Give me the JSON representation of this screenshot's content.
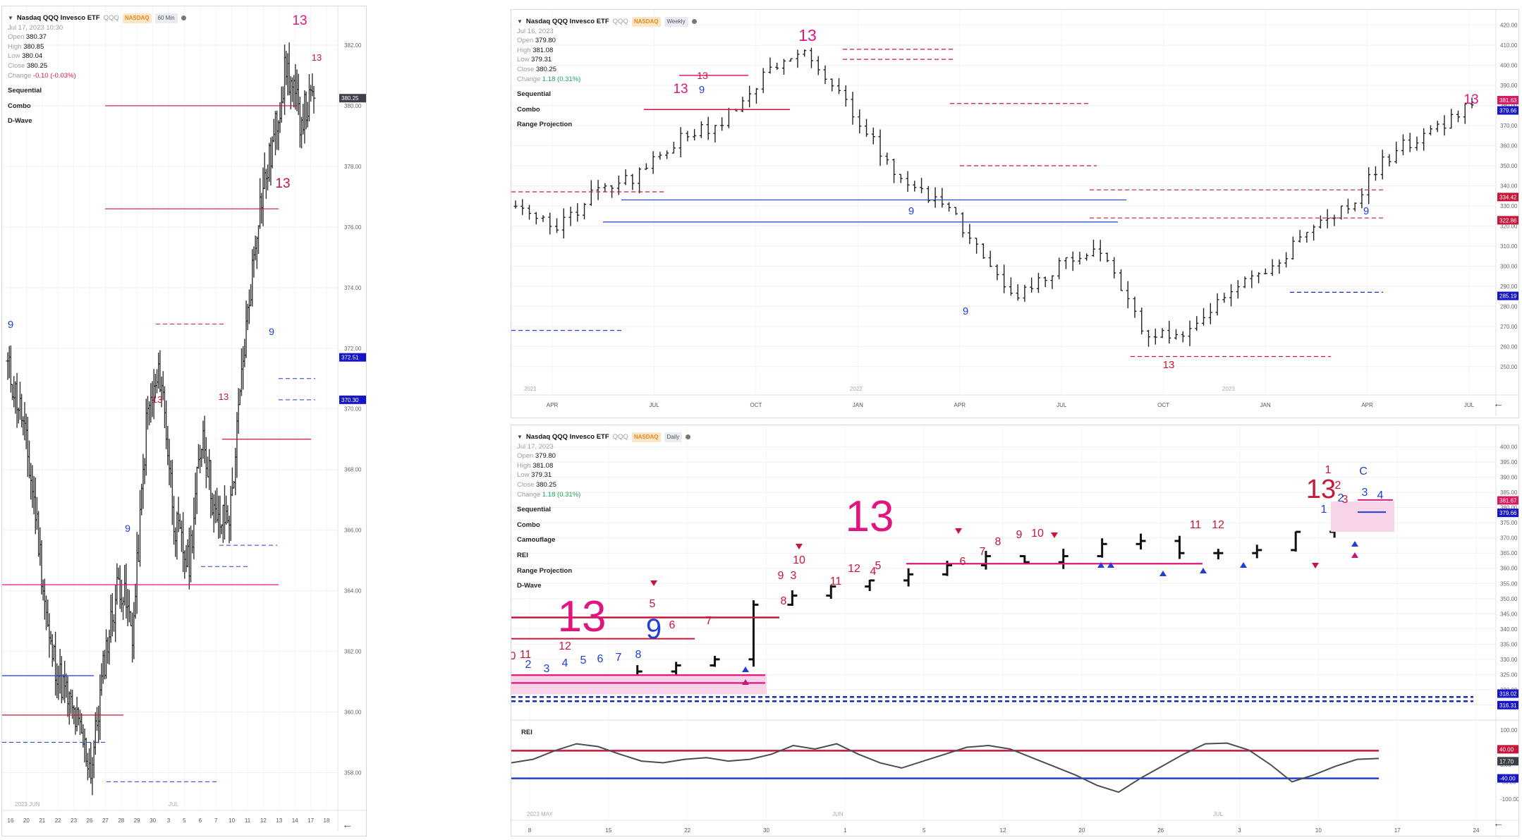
{
  "symbol_name": "Nasdaq QQQ Invesco ETF",
  "symbol": "QQQ",
  "exchange": "NASDAQ",
  "colors": {
    "bull_red": "#c8163a",
    "pink": "#e0157f",
    "blue": "#1f3fd8",
    "dark_blue": "#1a2bb8",
    "price_black": "#111111"
  },
  "panels": {
    "intraday": {
      "timeframe": "60 Min",
      "date": "Jul 17, 2023  10:30",
      "open_label": "Open",
      "open": "380.37",
      "high_label": "High",
      "high": "380.85",
      "low_label": "Low",
      "low": "380.04",
      "close_label": "Close",
      "close": "380.25",
      "change_label": "Change",
      "change": "-0.10 (-0.03%)",
      "indicators": [
        "Sequential",
        "Combo",
        "D-Wave"
      ],
      "price_ticks": [
        "382.00",
        "380.00",
        "378.00",
        "376.00",
        "374.00",
        "372.00",
        "370.00",
        "368.00",
        "366.00",
        "364.00",
        "362.00",
        "360.00",
        "358.00"
      ],
      "price_labels": [
        {
          "text": "380.25",
          "color": "#3d4048"
        },
        {
          "text": "372.51",
          "color": "#1515c8"
        },
        {
          "text": "370.30",
          "color": "#1515c8"
        }
      ],
      "year_label": "2023 JUN",
      "month_label": "JUL",
      "x_ticks": [
        "16",
        "20",
        "21",
        "22",
        "23",
        "26",
        "27",
        "28",
        "29",
        "30",
        "3",
        "5",
        "6",
        "7",
        "10",
        "11",
        "12",
        "13",
        "14",
        "17",
        "18"
      ],
      "counts": [
        "13",
        "13",
        "13",
        "13",
        "13",
        "9",
        "9",
        "9"
      ]
    },
    "weekly": {
      "timeframe": "Weekly",
      "date": "Jul 16, 2023",
      "open_label": "Open",
      "open": "379.80",
      "high_label": "High",
      "high": "381.08",
      "low_label": "Low",
      "low": "379.31",
      "close_label": "Close",
      "close": "380.25",
      "change_label": "Change",
      "change": "1.18 (0.31%)",
      "indicators": [
        "Sequential",
        "Combo",
        "Range Projection"
      ],
      "price_ticks": [
        "420.00",
        "410.00",
        "400.00",
        "390.00",
        "380.00",
        "370.00",
        "360.00",
        "350.00",
        "340.00",
        "330.00",
        "320.00",
        "310.00",
        "300.00",
        "290.00",
        "280.00",
        "270.00",
        "260.00",
        "250.00"
      ],
      "price_labels": [
        {
          "text": "381.63",
          "color": "#d81b60"
        },
        {
          "text": "379.66",
          "color": "#1515c8"
        },
        {
          "text": "334.42",
          "color": "#c8163a"
        },
        {
          "text": "322.86",
          "color": "#c8163a"
        },
        {
          "text": "285.19",
          "color": "#1515c8"
        }
      ],
      "year_labels": [
        "2021",
        "2022",
        "2023"
      ],
      "x_ticks": [
        "APR",
        "JUL",
        "OCT",
        "JAN",
        "APR",
        "JUL",
        "OCT",
        "JAN",
        "APR",
        "JUL"
      ],
      "counts": [
        "13",
        "13",
        "13",
        "13",
        "13",
        "9",
        "9",
        "9",
        "9"
      ]
    },
    "daily": {
      "timeframe": "Daily",
      "date": "Jul 17, 2023",
      "open_label": "Open",
      "open": "379.80",
      "high_label": "High",
      "high": "381.08",
      "low_label": "Low",
      "low": "379.31",
      "close_label": "Close",
      "close": "380.25",
      "change_label": "Change",
      "change": "1.18 (0.31%)",
      "indicators": [
        "Sequential",
        "Combo",
        "Camouflage",
        "REI",
        "Range Projection",
        "D-Wave"
      ],
      "price_ticks": [
        "400.00",
        "395.00",
        "390.00",
        "385.00",
        "380.00",
        "375.00",
        "370.00",
        "365.00",
        "360.00",
        "355.00",
        "350.00",
        "345.00",
        "340.00",
        "335.00",
        "330.00",
        "325.00",
        "320.00",
        "315.00"
      ],
      "price_labels": [
        {
          "text": "381.67",
          "color": "#d81b60"
        },
        {
          "text": "379.66",
          "color": "#1515c8"
        },
        {
          "text": "318.02",
          "color": "#1515c8"
        },
        {
          "text": "316.31",
          "color": "#1515c8"
        }
      ],
      "big_counts": [
        "13",
        "13",
        "9",
        "13"
      ],
      "seq_labels_red": [
        "0",
        "11",
        "12",
        "5",
        "6",
        "7",
        "8",
        "9",
        "10",
        "3",
        "11",
        "12",
        "4",
        "5",
        "6",
        "7",
        "8",
        "9",
        "10",
        "11",
        "12",
        "1",
        "2",
        "3"
      ],
      "seq_labels_blue": [
        "2",
        "3",
        "4",
        "5",
        "6",
        "7",
        "8",
        "1",
        "2",
        "3",
        "4",
        "C"
      ],
      "rei": {
        "label": "REI",
        "ticks": [
          "100.00",
          "50.00",
          "0.00",
          "-50.00",
          "-100.00"
        ],
        "price_labels": [
          {
            "text": "40.00",
            "color": "#c8163a"
          },
          {
            "text": "17.70",
            "color": "#3d4048"
          },
          {
            "text": "-40.00",
            "color": "#1515c8"
          }
        ]
      },
      "year_label": "2023 MAY",
      "month_labels": [
        "JUN",
        "JUL"
      ],
      "x_ticks": [
        "8",
        "15",
        "22",
        "30",
        "1",
        "5",
        "12",
        "20",
        "26",
        "3",
        "10",
        "17",
        "24"
      ]
    }
  },
  "back_arrow": "←",
  "chart_data": [
    {
      "type": "line",
      "title": "",
      "timeframe": "60 Min",
      "series": [
        {
          "values": [
            371.4,
            369.8,
            366.6,
            362.2,
            360.8,
            359.6,
            358.1,
            361.9,
            364.4,
            362.6,
            369.8,
            371.2,
            366.2,
            364.8,
            369.4,
            366.1,
            366.6,
            372.0,
            376.5,
            378.6,
            381.3,
            379.6,
            380.25
          ]
        }
      ],
      "ylim": [
        357.5,
        383
      ]
    },
    {
      "type": "line",
      "title": "",
      "timeframe": "Weekly",
      "series": [
        {
          "values": [
            333,
            318,
            338,
            345,
            365,
            372,
            395,
            405,
            380,
            350,
            335,
            315,
            285,
            300,
            310,
            270,
            262,
            285,
            298,
            315,
            330,
            355,
            368,
            380.25
          ]
        }
      ],
      "ylim": [
        245,
        422
      ]
    },
    {
      "type": "line",
      "title": "",
      "timeframe": "Daily",
      "series": [
        {
          "values": [
            321,
            322,
            323,
            326,
            328,
            330,
            348,
            351,
            354,
            356,
            358,
            361,
            364,
            362,
            364,
            368,
            369,
            365,
            365,
            366,
            372,
            375,
            380.25
          ]
        }
      ],
      "ylim": [
        313,
        402
      ]
    }
  ]
}
